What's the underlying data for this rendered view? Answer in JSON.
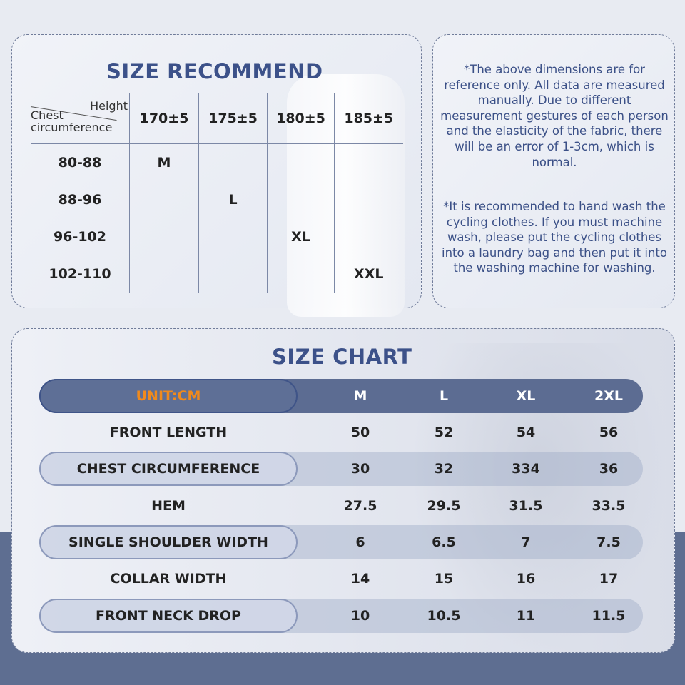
{
  "recommend": {
    "title": "SIZE RECOMMEND",
    "corner_height": "Height",
    "corner_chest": "Chest circumference",
    "heights": [
      "170±5",
      "175±5",
      "180±5",
      "185±5"
    ],
    "rows": [
      {
        "chest": "80-88",
        "cells": [
          "M",
          "",
          "",
          ""
        ]
      },
      {
        "chest": "88-96",
        "cells": [
          "",
          "L",
          "",
          ""
        ]
      },
      {
        "chest": "96-102",
        "cells": [
          "",
          "",
          "XL",
          ""
        ]
      },
      {
        "chest": "102-110",
        "cells": [
          "",
          "",
          "",
          "XXL"
        ]
      }
    ]
  },
  "notes": [
    "*The above dimensions are for reference only. All data are measured manually. Due to different measurement gestures of each person and the elasticity of the fabric, there will be an error of 1-3cm, which is normal.",
    "*It is recommended to hand wash the cycling clothes. If you must machine wash, please put the cycling clothes into a laundry bag and then put it into the washing machine for washing."
  ],
  "chart": {
    "title": "SIZE CHART",
    "unit": "UNIT:CM",
    "sizes": [
      "M",
      "L",
      "XL",
      "2XL"
    ],
    "rows": [
      {
        "label": "FRONT LENGTH",
        "values": [
          "50",
          "52",
          "54",
          "56"
        ]
      },
      {
        "label": "CHEST CIRCUMFERENCE",
        "values": [
          "30",
          "32",
          "334",
          "36"
        ]
      },
      {
        "label": "HEM",
        "values": [
          "27.5",
          "29.5",
          "31.5",
          "33.5"
        ]
      },
      {
        "label": "SINGLE SHOULDER WIDTH",
        "values": [
          "6",
          "6.5",
          "7",
          "7.5"
        ]
      },
      {
        "label": "COLLAR WIDTH",
        "values": [
          "14",
          "15",
          "16",
          "17"
        ]
      },
      {
        "label": "FRONT NECK DROP",
        "values": [
          "10",
          "10.5",
          "11",
          "11.5"
        ]
      }
    ]
  },
  "colors": {
    "title": "#3c5189",
    "header": "#5c6c92",
    "unit": "#f08a1c",
    "band": "#5e6e91"
  }
}
